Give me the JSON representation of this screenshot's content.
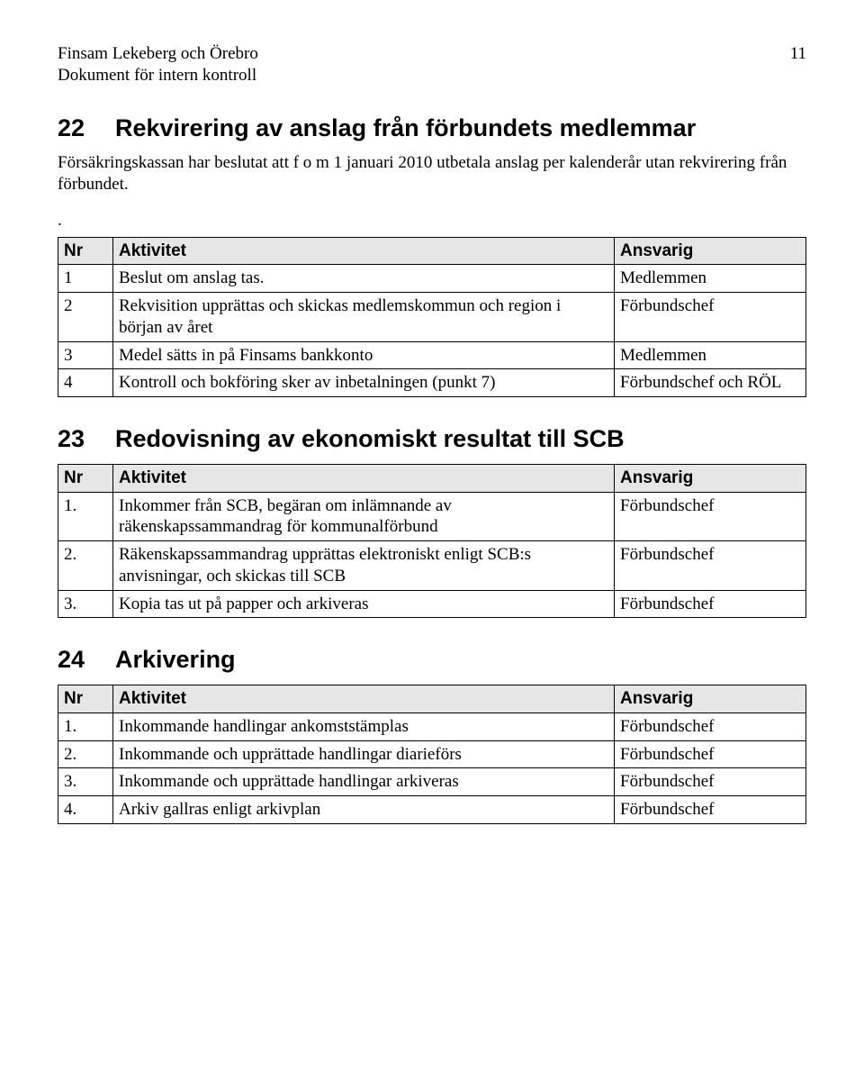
{
  "header": {
    "line1": "Finsam Lekeberg och Örebro",
    "line2": "Dokument för intern kontroll",
    "page_number": "11"
  },
  "sections": [
    {
      "num": "22",
      "title": "Rekvirering av anslag från förbundets medlemmar",
      "paragraph": "Försäkringskassan har beslutat att f o m 1 januari 2010 utbetala anslag per kalenderår utan rekvirering från förbundet.",
      "dot": ".",
      "table": {
        "headers": [
          "Nr",
          "Aktivitet",
          "Ansvarig"
        ],
        "rows": [
          {
            "nr": "1",
            "aktivitet": "Beslut om anslag tas.",
            "ansvarig": "Medlemmen"
          },
          {
            "nr": "2",
            "aktivitet": "Rekvisition upprättas och skickas medlemskommun och region i början av året",
            "ansvarig": "Förbundschef"
          },
          {
            "nr": "3",
            "aktivitet": "Medel sätts in på Finsams bankkonto",
            "ansvarig": "Medlemmen"
          },
          {
            "nr": "4",
            "aktivitet": "Kontroll och bokföring sker av inbetalningen (punkt 7)",
            "ansvarig": "Förbundschef och RÖL"
          }
        ]
      }
    },
    {
      "num": "23",
      "title": "Redovisning av ekonomiskt resultat till SCB",
      "table": {
        "headers": [
          "Nr",
          "Aktivitet",
          "Ansvarig"
        ],
        "rows": [
          {
            "nr": "1.",
            "aktivitet": "Inkommer från SCB, begäran om inlämnande av räkenskapssammandrag för kommunalförbund",
            "ansvarig": "Förbundschef"
          },
          {
            "nr": "2.",
            "aktivitet": "Räkenskapssammandrag upprättas elektroniskt enligt SCB:s anvisningar, och skickas till SCB",
            "ansvarig": "Förbundschef"
          },
          {
            "nr": "3.",
            "aktivitet": "Kopia tas ut på papper och arkiveras",
            "ansvarig": "Förbundschef"
          }
        ]
      }
    },
    {
      "num": "24",
      "title": "Arkivering",
      "table": {
        "headers": [
          "Nr",
          "Aktivitet",
          "Ansvarig"
        ],
        "rows": [
          {
            "nr": "1.",
            "aktivitet": "Inkommande handlingar ankomststämplas",
            "ansvarig": "Förbundschef"
          },
          {
            "nr": "2.",
            "aktivitet": "Inkommande och upprättade handlingar diarieförs",
            "ansvarig": "Förbundschef"
          },
          {
            "nr": "3.",
            "aktivitet": "Inkommande och upprättade handlingar arkiveras",
            "ansvarig": "Förbundschef"
          },
          {
            "nr": "4.",
            "aktivitet": "Arkiv gallras enligt arkivplan",
            "ansvarig": "Förbundschef"
          }
        ]
      }
    }
  ]
}
